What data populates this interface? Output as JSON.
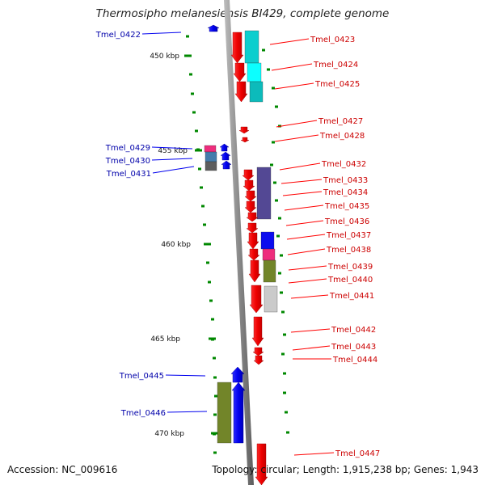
{
  "title": "Thermosipho melanesiensis BI429, complete genome",
  "footer": {
    "accession": "Accession: NC_009616",
    "topology": "Topology: circular; Length: 1,915,238 bp; Genes: 1,943"
  },
  "colors": {
    "forward_gene": "#0000ee",
    "reverse_gene": "#ff0000",
    "forward_label": "#0000aa",
    "reverse_label": "#cc0000",
    "tick": "#008800",
    "backbone": "#888888",
    "cyan": "#00cccc",
    "slate": "#4a3f8f",
    "magenta": "#ee2277",
    "olive": "#6b7f1e",
    "grey": "#c8c8c8",
    "steel": "#3a76a8",
    "dark_grey": "#555555"
  },
  "scale_labels": [
    "450 kbp",
    "455 kbp",
    "460 kbp",
    "465 kbp",
    "470 kbp"
  ],
  "genes_forward": [
    {
      "label": "Tmel_0422"
    },
    {
      "label": "Tmel_0429"
    },
    {
      "label": "Tmel_0430"
    },
    {
      "label": "Tmel_0431"
    },
    {
      "label": "Tmel_0445"
    },
    {
      "label": "Tmel_0446"
    }
  ],
  "genes_reverse": [
    {
      "label": "Tmel_0423"
    },
    {
      "label": "Tmel_0424"
    },
    {
      "label": "Tmel_0425"
    },
    {
      "label": "Tmel_0427"
    },
    {
      "label": "Tmel_0428"
    },
    {
      "label": "Tmel_0432"
    },
    {
      "label": "Tmel_0433"
    },
    {
      "label": "Tmel_0434"
    },
    {
      "label": "Tmel_0435"
    },
    {
      "label": "Tmel_0436"
    },
    {
      "label": "Tmel_0437"
    },
    {
      "label": "Tmel_0438"
    },
    {
      "label": "Tmel_0439"
    },
    {
      "label": "Tmel_0440"
    },
    {
      "label": "Tmel_0441"
    },
    {
      "label": "Tmel_0442"
    },
    {
      "label": "Tmel_0443"
    },
    {
      "label": "Tmel_0444"
    },
    {
      "label": "Tmel_0447"
    }
  ]
}
